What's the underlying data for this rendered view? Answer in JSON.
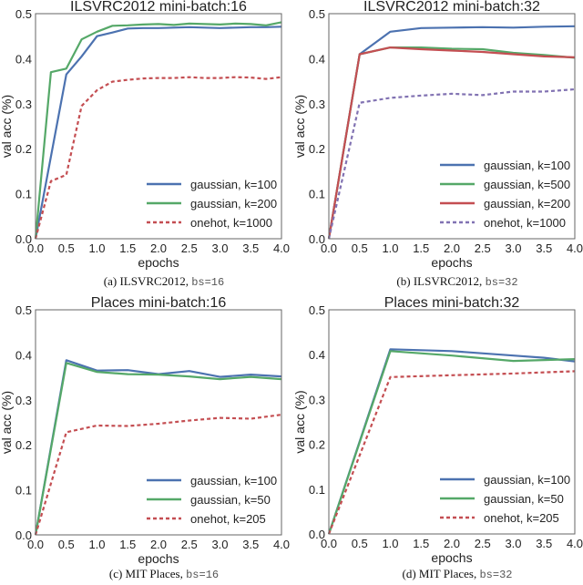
{
  "chart_data": [
    {
      "type": "line",
      "title": "ILSVRC2012 mini-batch:16",
      "xlabel": "epochs",
      "ylabel": "val acc (%)",
      "xlim": [
        0,
        4
      ],
      "ylim": [
        0,
        0.5
      ],
      "xticks": [
        "0.0",
        "0.5",
        "1.0",
        "1.5",
        "2.0",
        "2.5",
        "3.0",
        "3.5",
        "4.0"
      ],
      "yticks": [
        "0.0",
        "0.1",
        "0.2",
        "0.3",
        "0.4",
        "0.5"
      ],
      "grid": false,
      "legend": "lower-right",
      "caption": {
        "text": "(a) ILSVRC2012, ",
        "code": "bs=16"
      },
      "series": [
        {
          "name": "gaussian, k=100",
          "color": "#4C72B0",
          "dash": false,
          "x": [
            0,
            0.5,
            0.75,
            1.0,
            1.25,
            1.5,
            1.75,
            2.0,
            2.25,
            2.5,
            2.75,
            3.0,
            3.25,
            3.5,
            3.75,
            4.0
          ],
          "y": [
            0,
            0.365,
            0.405,
            0.45,
            0.458,
            0.467,
            0.468,
            0.468,
            0.469,
            0.47,
            0.469,
            0.468,
            0.469,
            0.47,
            0.47,
            0.471
          ]
        },
        {
          "name": "gaussian, k=200",
          "color": "#55A868",
          "dash": false,
          "x": [
            0,
            0.25,
            0.5,
            0.75,
            1.0,
            1.25,
            1.5,
            1.75,
            2.0,
            2.25,
            2.5,
            2.75,
            3.0,
            3.25,
            3.5,
            3.75,
            4.0
          ],
          "y": [
            0,
            0.37,
            0.378,
            0.443,
            0.46,
            0.473,
            0.474,
            0.476,
            0.477,
            0.475,
            0.478,
            0.477,
            0.476,
            0.478,
            0.477,
            0.474,
            0.481
          ]
        },
        {
          "name": "onehot, k=1000",
          "color": "#C44E52",
          "dash": true,
          "x": [
            0,
            0.25,
            0.5,
            0.75,
            1.0,
            1.25,
            1.5,
            1.75,
            2.0,
            2.25,
            2.5,
            2.75,
            3.0,
            3.25,
            3.5,
            3.75,
            4.0
          ],
          "y": [
            0,
            0.128,
            0.142,
            0.295,
            0.33,
            0.349,
            0.353,
            0.356,
            0.357,
            0.357,
            0.359,
            0.357,
            0.357,
            0.359,
            0.358,
            0.355,
            0.359
          ]
        }
      ]
    },
    {
      "type": "line",
      "title": "ILSVRC2012 mini-batch:32",
      "xlabel": "epochs",
      "ylabel": "val acc (%)",
      "xlim": [
        0,
        4
      ],
      "ylim": [
        0,
        0.5
      ],
      "xticks": [
        "0.0",
        "0.5",
        "1.0",
        "1.5",
        "2.0",
        "2.5",
        "3.0",
        "3.5",
        "4.0"
      ],
      "yticks": [
        "0.0",
        "0.1",
        "0.2",
        "0.3",
        "0.4",
        "0.5"
      ],
      "grid": false,
      "legend": "lower-right",
      "caption": {
        "text": "(b) ILSVRC2012, ",
        "code": "bs=32"
      },
      "series": [
        {
          "name": "gaussian, k=100",
          "color": "#4C72B0",
          "dash": false,
          "x": [
            0,
            0.5,
            1.0,
            1.5,
            2.0,
            2.5,
            3.0,
            3.5,
            4.0
          ],
          "y": [
            0,
            0.41,
            0.46,
            0.468,
            0.469,
            0.47,
            0.469,
            0.471,
            0.472
          ]
        },
        {
          "name": "gaussian, k=500",
          "color": "#55A868",
          "dash": false,
          "x": [
            0,
            0.5,
            1.0,
            1.5,
            2.0,
            2.5,
            3.0,
            3.5,
            4.0
          ],
          "y": [
            0,
            0.41,
            0.425,
            0.425,
            0.422,
            0.421,
            0.413,
            0.408,
            0.402
          ]
        },
        {
          "name": "gaussian, k=200",
          "color": "#C44E52",
          "dash": false,
          "x": [
            0,
            0.5,
            1.0,
            1.5,
            2.0,
            2.5,
            3.0,
            3.5,
            4.0
          ],
          "y": [
            0,
            0.41,
            0.425,
            0.421,
            0.418,
            0.415,
            0.41,
            0.405,
            0.403
          ]
        },
        {
          "name": "onehot, k=1000",
          "color": "#8172B2",
          "dash": true,
          "x": [
            0,
            0.5,
            1.0,
            1.5,
            2.0,
            2.5,
            3.0,
            3.5,
            4.0
          ],
          "y": [
            0,
            0.302,
            0.313,
            0.318,
            0.322,
            0.319,
            0.327,
            0.327,
            0.332
          ]
        }
      ]
    },
    {
      "type": "line",
      "title": "Places mini-batch:16",
      "xlabel": "epochs",
      "ylabel": "val acc (%)",
      "xlim": [
        0,
        4
      ],
      "ylim": [
        0,
        0.5
      ],
      "xticks": [
        "0.0",
        "0.5",
        "1.0",
        "1.5",
        "2.0",
        "2.5",
        "3.0",
        "3.5",
        "4.0"
      ],
      "yticks": [
        "0.0",
        "0.1",
        "0.2",
        "0.3",
        "0.4",
        "0.5"
      ],
      "grid": false,
      "legend": "lower-right",
      "caption": {
        "text": "(c) MIT Places, ",
        "code": "bs=16"
      },
      "series": [
        {
          "name": "gaussian, k=100",
          "color": "#4C72B0",
          "dash": false,
          "x": [
            0,
            0.5,
            1.0,
            1.5,
            2.0,
            2.5,
            3.0,
            3.5,
            4.0
          ],
          "y": [
            0,
            0.388,
            0.365,
            0.366,
            0.357,
            0.364,
            0.351,
            0.356,
            0.352
          ]
        },
        {
          "name": "gaussian, k=50",
          "color": "#55A868",
          "dash": false,
          "x": [
            0,
            0.5,
            1.0,
            1.5,
            2.0,
            2.5,
            3.0,
            3.5,
            4.0
          ],
          "y": [
            0,
            0.382,
            0.362,
            0.357,
            0.356,
            0.352,
            0.346,
            0.351,
            0.346
          ]
        },
        {
          "name": "onehot, k=205",
          "color": "#C44E52",
          "dash": true,
          "x": [
            0,
            0.5,
            1.0,
            1.5,
            2.0,
            2.5,
            3.0,
            3.5,
            4.0
          ],
          "y": [
            0,
            0.228,
            0.243,
            0.242,
            0.247,
            0.254,
            0.26,
            0.258,
            0.267
          ]
        }
      ]
    },
    {
      "type": "line",
      "title": "Places mini-batch:32",
      "xlabel": "epochs",
      "ylabel": "val acc (%)",
      "xlim": [
        0,
        4
      ],
      "ylim": [
        0,
        0.5
      ],
      "xticks": [
        "0.0",
        "0.5",
        "1.0",
        "1.5",
        "2.0",
        "2.5",
        "3.0",
        "3.5",
        "4.0"
      ],
      "yticks": [
        "0.0",
        "0.1",
        "0.2",
        "0.3",
        "0.4",
        "0.5"
      ],
      "grid": false,
      "legend": "lower-right",
      "caption": {
        "text": "(d) MIT Places, ",
        "code": "bs=32"
      },
      "series": [
        {
          "name": "gaussian, k=100",
          "color": "#4C72B0",
          "dash": false,
          "x": [
            0,
            1.0,
            2.0,
            3.0,
            3.5,
            4.0
          ],
          "y": [
            0,
            0.412,
            0.408,
            0.398,
            0.393,
            0.385
          ]
        },
        {
          "name": "gaussian, k=50",
          "color": "#55A868",
          "dash": false,
          "x": [
            0,
            1.0,
            2.0,
            3.0,
            4.0
          ],
          "y": [
            0,
            0.408,
            0.398,
            0.386,
            0.39
          ]
        },
        {
          "name": "onehot, k=205",
          "color": "#C44E52",
          "dash": true,
          "x": [
            0,
            1.0,
            2.0,
            3.0,
            4.0
          ],
          "y": [
            0,
            0.35,
            0.354,
            0.358,
            0.363
          ]
        }
      ]
    }
  ]
}
